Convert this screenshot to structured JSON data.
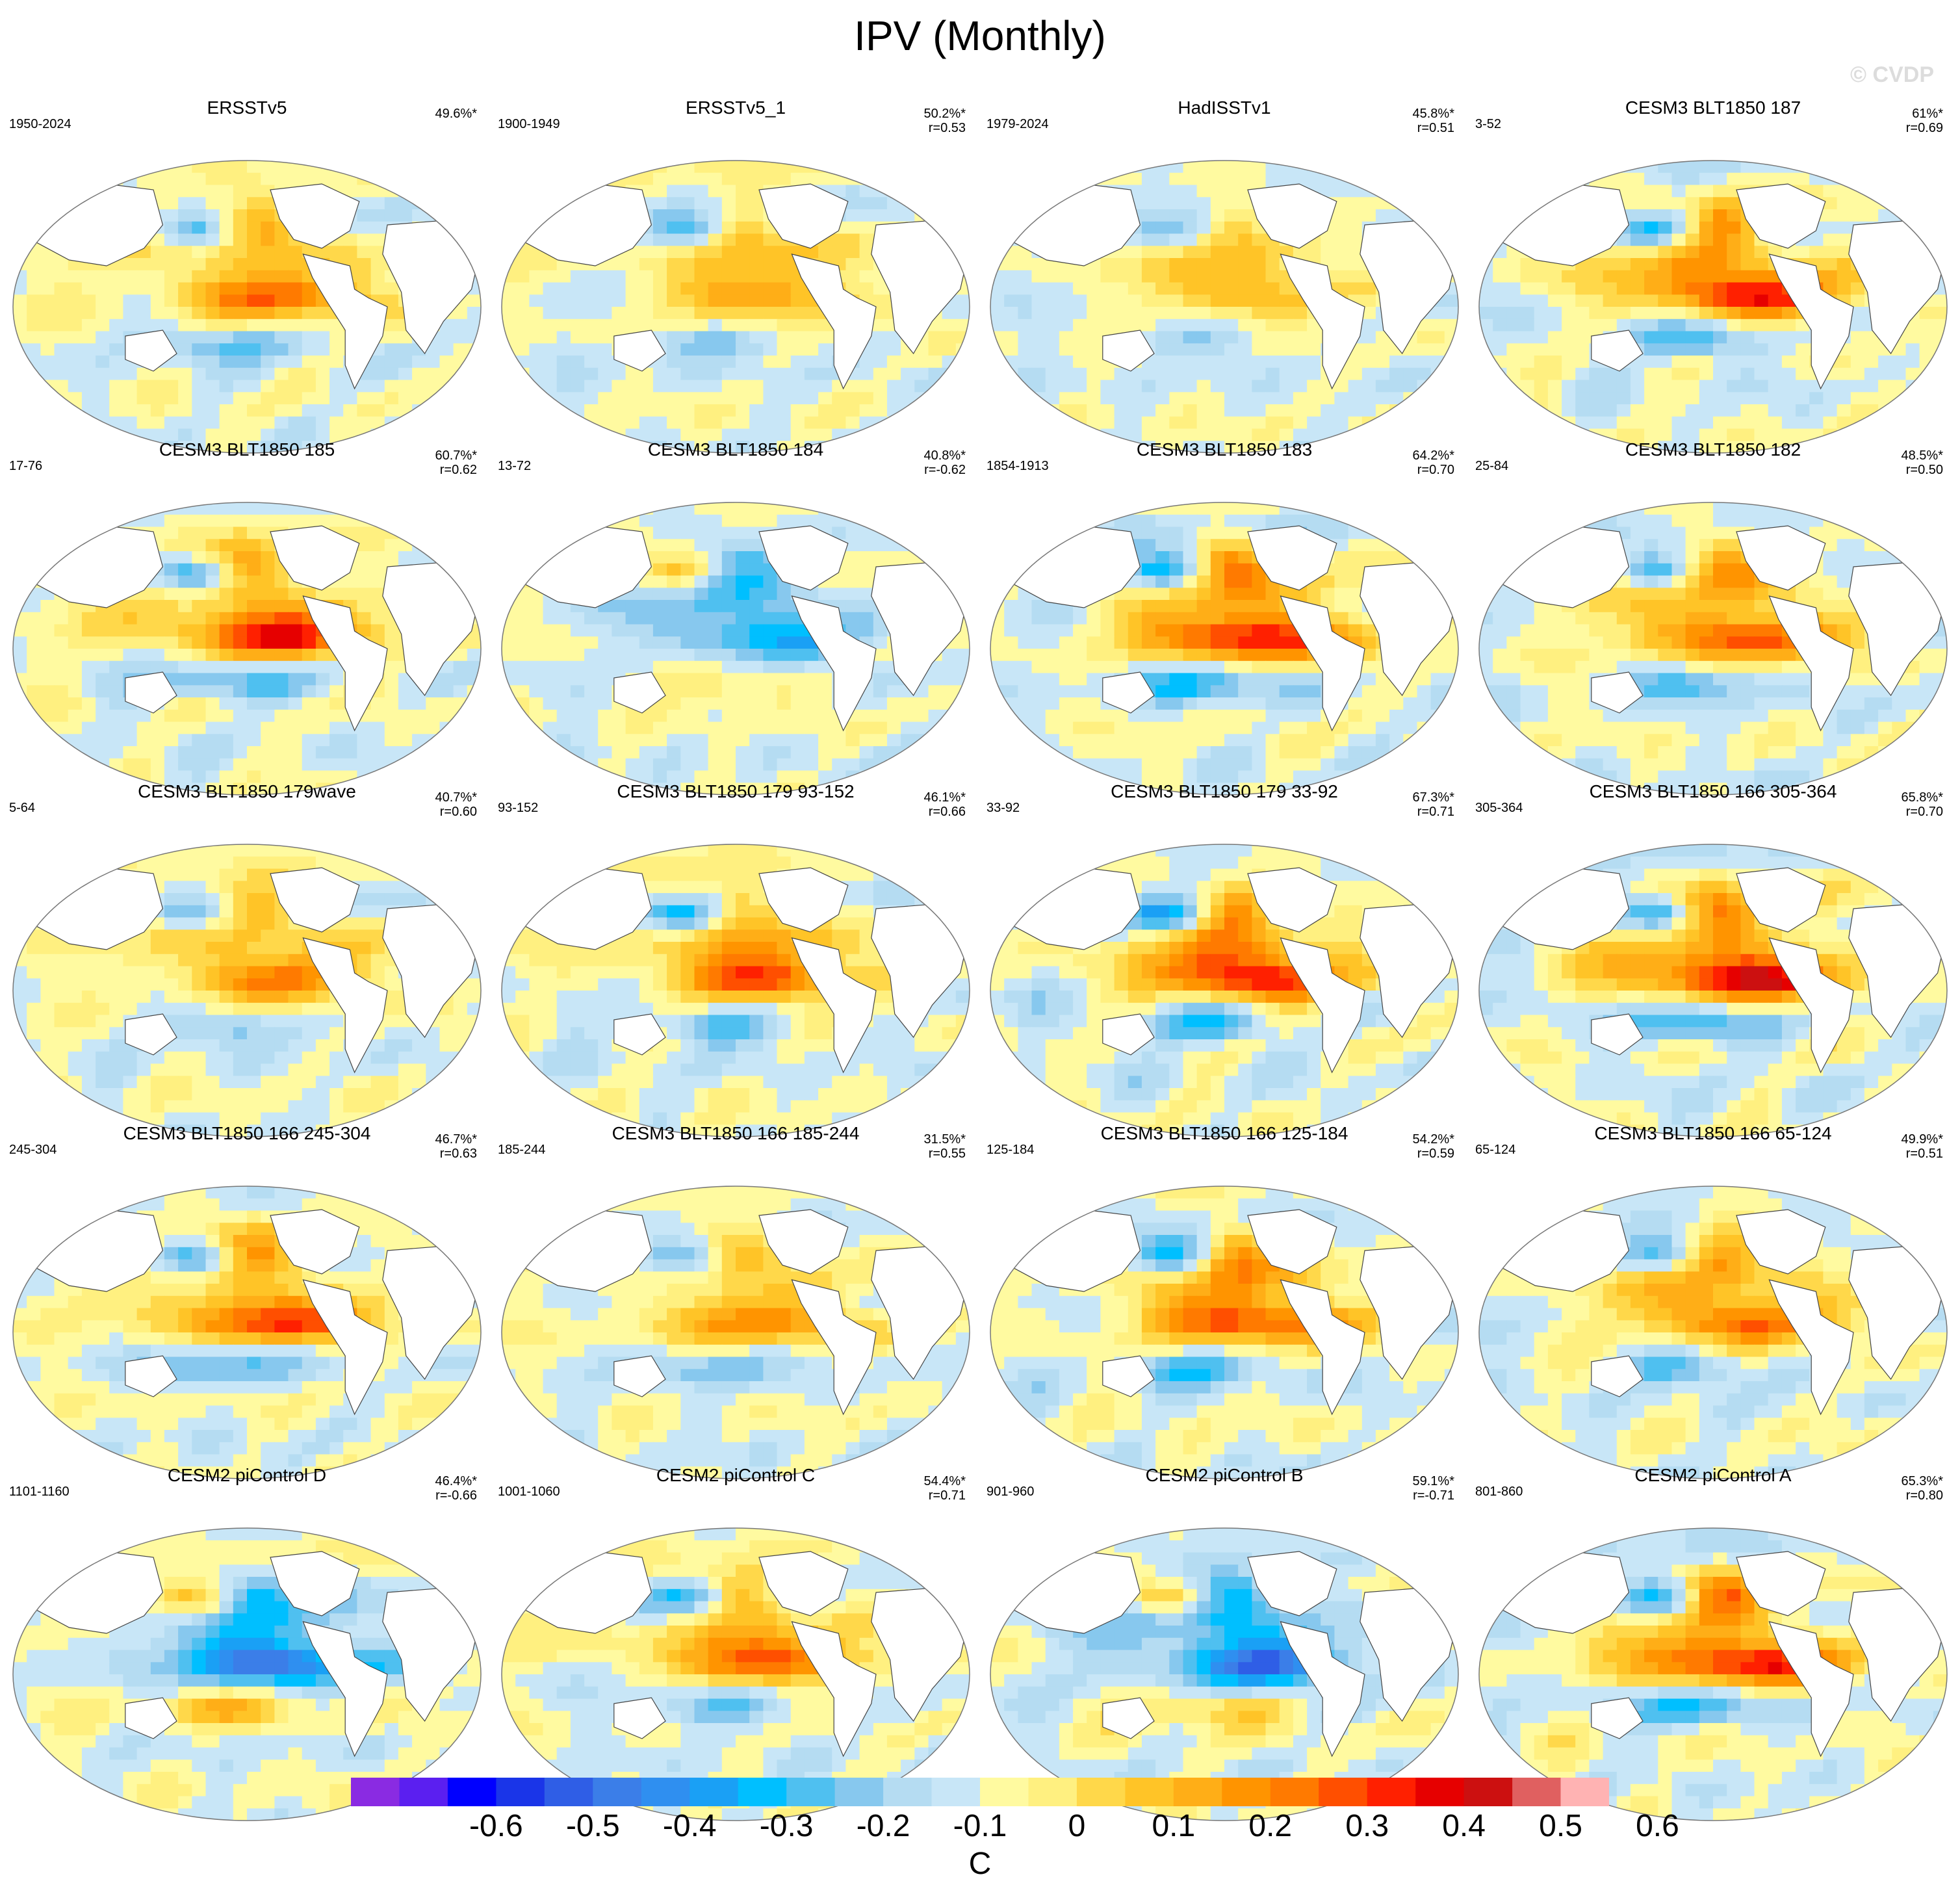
{
  "title": "IPV (Monthly)",
  "watermark": "© CVDP",
  "chart_data": {
    "type": "heatmap",
    "title": "IPV (Monthly)",
    "projection": "global ellipse map, Pacific-centered",
    "colorbar": {
      "units": "C",
      "tick_labels": [
        "-0.6",
        "-0.5",
        "-0.4",
        "-0.3",
        "-0.2",
        "-0.1",
        "0",
        "0.1",
        "0.2",
        "0.3",
        "0.4",
        "0.5",
        "0.6"
      ],
      "colors": [
        "#8a2be2",
        "#5b1ff0",
        "#0000ff",
        "#1a35e8",
        "#2f5ee6",
        "#3b7ee8",
        "#2f8ff0",
        "#1aa0f5",
        "#00bfff",
        "#4fc0f0",
        "#87c8ee",
        "#b5dcf2",
        "#c8e6f7",
        "#fffaa0",
        "#fff080",
        "#ffd84a",
        "#ffc427",
        "#ffae17",
        "#ff9400",
        "#ff7a00",
        "#ff4f00",
        "#ff2000",
        "#e60000",
        "#cc1010",
        "#e06060",
        "#ffb3b3"
      ],
      "range": [
        -0.7,
        0.7
      ]
    },
    "panels": [
      {
        "name": "ERSSTv5",
        "years": "1950-2024",
        "pct": "49.6%*",
        "r": "",
        "pattern": 0.75
      },
      {
        "name": "ERSSTv5_1",
        "years": "1900-1949",
        "pct": "50.2%*",
        "r": "r=0.53",
        "pattern": 0.6
      },
      {
        "name": "HadISSTv1",
        "years": "1979-2024",
        "pct": "45.8%*",
        "r": "r=0.51",
        "pattern": 0.5
      },
      {
        "name": "CESM3 BLT1850 187",
        "years": "3-52",
        "pct": "61%*",
        "r": "r=0.69",
        "pattern": 0.95
      },
      {
        "name": "CESM3 BLT1850 185",
        "years": "17-76",
        "pct": "60.7%*",
        "r": "r=0.62",
        "pattern": 0.9
      },
      {
        "name": "CESM3 BLT1850 184",
        "years": "13-72",
        "pct": "40.8%*",
        "r": "r=-0.62",
        "pattern": -0.6
      },
      {
        "name": "CESM3 BLT1850 183",
        "years": "1854-1913",
        "pct": "64.2%*",
        "r": "r=0.70",
        "pattern": 1.0
      },
      {
        "name": "CESM3 BLT1850 182",
        "years": "25-84",
        "pct": "48.5%*",
        "r": "r=0.50",
        "pattern": 0.85
      },
      {
        "name": "CESM3 BLT1850 179wave",
        "years": "5-64",
        "pct": "40.7%*",
        "r": "r=0.60",
        "pattern": 0.7
      },
      {
        "name": "CESM3 BLT1850 179 93-152",
        "years": "93-152",
        "pct": "46.1%*",
        "r": "r=0.66",
        "pattern": 0.85
      },
      {
        "name": "CESM3 BLT1850 179 33-92",
        "years": "33-92",
        "pct": "67.3%*",
        "r": "r=0.71",
        "pattern": 1.0
      },
      {
        "name": "CESM3 BLT1850 166 305-364",
        "years": "305-364",
        "pct": "65.8%*",
        "r": "r=0.70",
        "pattern": 1.05
      },
      {
        "name": "CESM3 BLT1850 166 245-304",
        "years": "245-304",
        "pct": "46.7%*",
        "r": "r=0.63",
        "pattern": 0.8
      },
      {
        "name": "CESM3 BLT1850 166 185-244",
        "years": "185-244",
        "pct": "31.5%*",
        "r": "r=0.55",
        "pattern": 0.6
      },
      {
        "name": "CESM3 BLT1850 166 125-184",
        "years": "125-184",
        "pct": "54.2%*",
        "r": "r=0.59",
        "pattern": 0.9
      },
      {
        "name": "CESM3 BLT1850 166 65-124",
        "years": "65-124",
        "pct": "49.9%*",
        "r": "r=0.51",
        "pattern": 0.8
      },
      {
        "name": "CESM2 piControl D",
        "years": "1101-1160",
        "pct": "46.4%*",
        "r": "r=-0.66",
        "pattern": -0.8
      },
      {
        "name": "CESM2 piControl C",
        "years": "1001-1060",
        "pct": "54.4%*",
        "r": "r=0.71",
        "pattern": 0.75
      },
      {
        "name": "CESM2 piControl B",
        "years": "901-960",
        "pct": "59.1%*",
        "r": "r=-0.71",
        "pattern": -0.85
      },
      {
        "name": "CESM2 piControl A",
        "years": "801-860",
        "pct": "65.3%*",
        "r": "r=0.80",
        "pattern": 0.95
      }
    ]
  }
}
